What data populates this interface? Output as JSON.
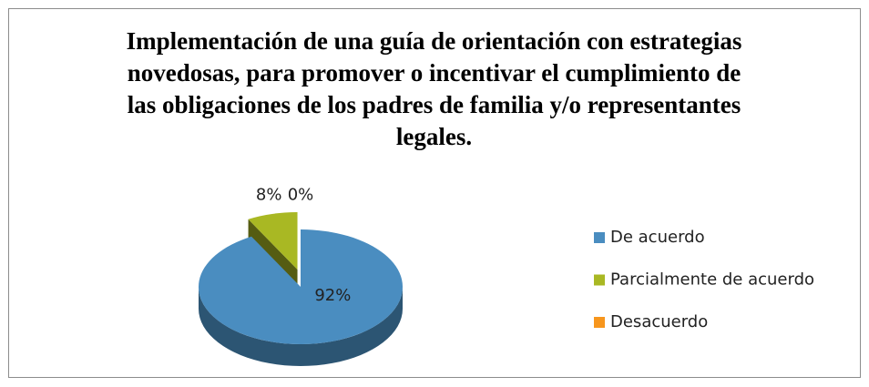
{
  "chart_data": {
    "type": "pie",
    "title": "Implementación de una guía de orientación con estrategias novedosas, para promover o incentivar el cumplimiento de las obligaciones de los padres de familia y/o representantes legales.",
    "categories": [
      "De acuerdo",
      "Parcialmente de acuerdo",
      "Desacuerdo"
    ],
    "values": [
      92,
      8,
      0
    ],
    "value_labels": [
      "92%",
      "8%",
      "0%"
    ],
    "colors": [
      "#4a8dc0",
      "#a9b823",
      "#f7961d"
    ],
    "legend": "right"
  }
}
